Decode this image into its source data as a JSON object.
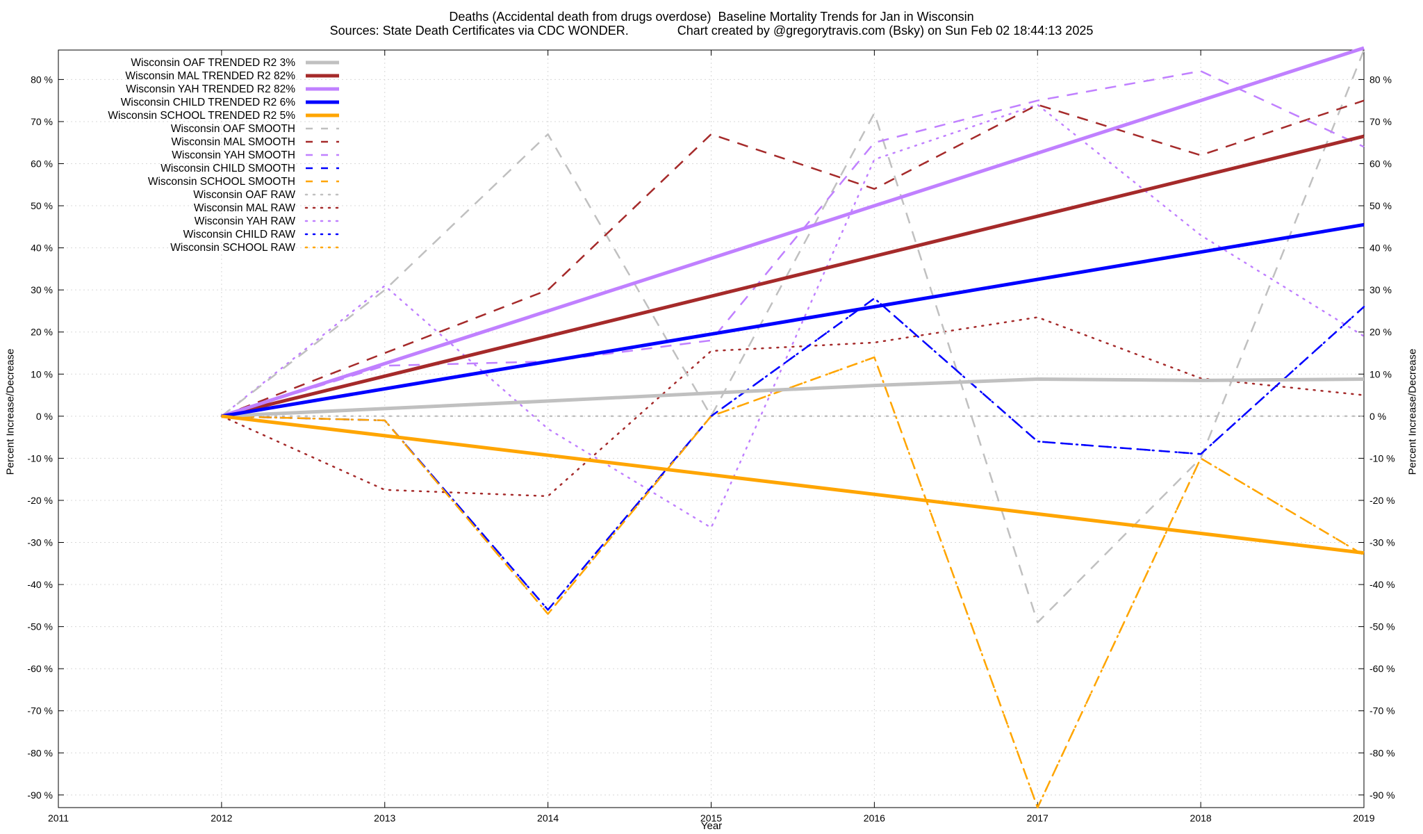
{
  "chart_data": {
    "type": "line",
    "title": "Deaths (Accidental death from drugs overdose)  Baseline Mortality Trends for Jan in Wisconsin",
    "subtitle": "Sources: State Death Certificates via CDC WONDER.              Chart created by @gregorytravis.com (Bsky) on Sun Feb 02 18:44:13 2025",
    "xlabel": "Year",
    "ylabel": "Percent Increase/Decrease",
    "y2label": "Percent Increase/Decrease",
    "xlim": [
      2011,
      2019
    ],
    "ylim": [
      -93,
      87
    ],
    "x_ticks": [
      "2011",
      "2012",
      "2013",
      "2014",
      "2015",
      "2016",
      "2017",
      "2018",
      "2019"
    ],
    "y_ticks_left": [
      "80 %",
      "70 %",
      "60 %",
      "50 %",
      "40 %",
      "30 %",
      "20 %",
      "10 %",
      "0 %",
      "-10 %",
      "-20 %",
      "-30 %",
      "-40 %",
      "-50 %",
      "-60 %",
      "-70 %",
      "-80 %",
      "-90 %"
    ],
    "y_ticks_right": [
      "80 %",
      "70 %",
      "60 %",
      "50 %",
      "40 %",
      "30 %",
      "20 %",
      "10 %",
      "0 %",
      "-10 %",
      "-20 %",
      "-30 %",
      "-40 %",
      "-50 %",
      "-60 %",
      "-70 %",
      "-80 %",
      "-90 %"
    ],
    "y_tick_values": [
      80,
      70,
      60,
      50,
      40,
      30,
      20,
      10,
      0,
      -10,
      -20,
      -30,
      -40,
      -50,
      -60,
      -70,
      -80,
      -90
    ],
    "grid": true,
    "legend_position": "top-left",
    "series": [
      {
        "name": "Wisconsin OAF TRENDED R2   3%",
        "style": "solid",
        "color": "#c0c0c0",
        "x": [
          2012,
          2013,
          2014,
          2015,
          2016,
          2017,
          2018,
          2019
        ],
        "values": [
          0,
          1.8,
          3.6,
          5.5,
          7.3,
          8.8,
          8.5,
          8.8
        ]
      },
      {
        "name": "Wisconsin MAL TRENDED R2  82%",
        "style": "solid",
        "color": "#a52a2a",
        "x": [
          2012,
          2019
        ],
        "values": [
          0,
          66.5
        ]
      },
      {
        "name": "Wisconsin YAH TRENDED R2  82%",
        "style": "solid",
        "color": "#c080ff",
        "x": [
          2012,
          2019
        ],
        "values": [
          0,
          87.5
        ]
      },
      {
        "name": "Wisconsin CHILD TRENDED R2   6%",
        "style": "solid",
        "color": "#0000ff",
        "x": [
          2012,
          2019
        ],
        "values": [
          0,
          45.5
        ]
      },
      {
        "name": "Wisconsin SCHOOL TRENDED R2   5%",
        "style": "solid",
        "color": "#ffa500",
        "x": [
          2012,
          2019
        ],
        "values": [
          0,
          -32.5
        ]
      },
      {
        "name": "Wisconsin OAF SMOOTH",
        "style": "dashed",
        "color": "#c0c0c0",
        "x": [
          2012,
          2013,
          2014,
          2015,
          2016,
          2017,
          2018,
          2019
        ],
        "values": [
          0,
          30,
          67,
          0,
          72,
          -49,
          -10,
          87
        ]
      },
      {
        "name": "Wisconsin MAL SMOOTH",
        "style": "dashed",
        "color": "#a52a2a",
        "x": [
          2012,
          2013,
          2014,
          2015,
          2016,
          2017,
          2018,
          2019
        ],
        "values": [
          0,
          15,
          30,
          67,
          54,
          74,
          62,
          75
        ]
      },
      {
        "name": "Wisconsin YAH SMOOTH",
        "style": "dashed",
        "color": "#c080ff",
        "x": [
          2012,
          2013,
          2014,
          2015,
          2016,
          2017,
          2018,
          2019
        ],
        "values": [
          0,
          12,
          13,
          18,
          65,
          75,
          82,
          64
        ]
      },
      {
        "name": "Wisconsin CHILD SMOOTH",
        "style": "dashed",
        "color": "#0000ff",
        "x": [
          2012,
          2013,
          2014,
          2015,
          2016,
          2017,
          2018,
          2019
        ],
        "values": [
          0,
          -1,
          -46,
          0,
          28,
          -6,
          -9,
          26
        ]
      },
      {
        "name": "Wisconsin SCHOOL SMOOTH",
        "style": "dashed",
        "color": "#ffa500",
        "x": [
          2012,
          2013,
          2014,
          2015,
          2016,
          2017,
          2018,
          2019
        ],
        "values": [
          0,
          -1,
          -47,
          0,
          14,
          -93,
          -10,
          -33
        ]
      },
      {
        "name": "Wisconsin OAF RAW",
        "style": "dotted",
        "color": "#c0c0c0",
        "x": [
          2012,
          2013,
          2014,
          2015,
          2016,
          2017,
          2018,
          2019
        ],
        "values": [
          0,
          0,
          0,
          0,
          0,
          0,
          0,
          0
        ]
      },
      {
        "name": "Wisconsin MAL RAW",
        "style": "dotted",
        "color": "#a52a2a",
        "x": [
          2012,
          2013,
          2014,
          2015,
          2016,
          2017,
          2018,
          2019
        ],
        "values": [
          0,
          -17.5,
          -19,
          15.5,
          17.5,
          23.5,
          9,
          5
        ]
      },
      {
        "name": "Wisconsin YAH RAW",
        "style": "dotted",
        "color": "#c080ff",
        "x": [
          2012,
          2013,
          2014,
          2015,
          2016,
          2017,
          2018,
          2019
        ],
        "values": [
          0,
          31,
          -3,
          -26.5,
          61,
          74,
          43,
          19
        ]
      },
      {
        "name": "Wisconsin CHILD RAW",
        "style": "dotted",
        "color": "#0000ff",
        "x": [
          2012,
          2013,
          2014,
          2015,
          2016,
          2017,
          2018,
          2019
        ],
        "values": [
          0,
          -1,
          -46,
          0,
          28,
          -6,
          -9,
          26
        ]
      },
      {
        "name": "Wisconsin SCHOOL RAW",
        "style": "dotted",
        "color": "#ffa500",
        "x": [
          2012,
          2013,
          2014,
          2015,
          2016,
          2017,
          2018,
          2019
        ],
        "values": [
          0,
          -1,
          -47,
          0,
          14,
          -93,
          -10,
          -33
        ]
      }
    ]
  }
}
